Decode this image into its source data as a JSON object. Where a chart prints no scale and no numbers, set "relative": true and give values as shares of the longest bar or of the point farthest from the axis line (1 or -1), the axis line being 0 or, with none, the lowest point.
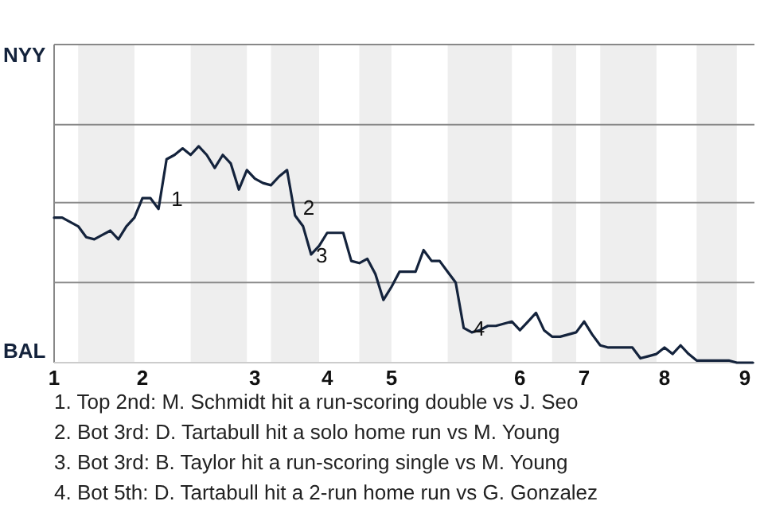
{
  "chart_data": {
    "type": "line",
    "relative": true,
    "categories": [
      "1",
      null,
      null,
      null,
      null,
      null,
      null,
      null,
      null,
      null,
      null,
      "2",
      null,
      null,
      null,
      null,
      null,
      null,
      null,
      null,
      null,
      null,
      null,
      null,
      null,
      "3",
      null,
      null,
      null,
      null,
      null,
      null,
      null,
      null,
      "4",
      null,
      null,
      null,
      null,
      null,
      null,
      null,
      "5",
      null,
      null,
      null,
      null,
      null,
      null,
      null,
      null,
      null,
      null,
      null,
      null,
      null,
      null,
      null,
      "6",
      null,
      null,
      null,
      null,
      null,
      null,
      null,
      "7",
      null,
      null,
      null,
      null,
      null,
      null,
      null,
      null,
      null,
      "8",
      null,
      null,
      null,
      null,
      null,
      null,
      null,
      null,
      null,
      "9",
      null
    ],
    "ref_lines": [
      {
        "axis": "y",
        "value": 0.37,
        "color": "#888888"
      },
      {
        "axis": "y",
        "value": 0.74,
        "color": "#888888"
      },
      {
        "axis": "y",
        "value": 1.1,
        "color": "#888888"
      },
      {
        "axis": "y",
        "value": 1.47,
        "color": "#888888"
      }
    ],
    "series": [
      {
        "color": "#14233c",
        "values": [
          0.67,
          0.67,
          0.65,
          0.63,
          0.58,
          0.57,
          0.59,
          0.61,
          0.57,
          0.63,
          0.67,
          0.76,
          0.76,
          0.71,
          0.94,
          0.96,
          0.99,
          0.96,
          1,
          0.96,
          0.9,
          0.96,
          0.92,
          0.8,
          0.89,
          0.85,
          0.83,
          0.82,
          0.86,
          0.89,
          0.68,
          0.63,
          0.5,
          0.54,
          0.6,
          0.6,
          0.6,
          0.47,
          0.46,
          0.48,
          0.41,
          0.29,
          0.35,
          0.42,
          0.42,
          0.42,
          0.52,
          0.47,
          0.47,
          0.42,
          0.37,
          0.16,
          0.14,
          0.15,
          0.17,
          0.17,
          0.18,
          0.19,
          0.15,
          0.19,
          0.23,
          0.15,
          0.12,
          0.12,
          0.13,
          0.14,
          0.19,
          0.13,
          0.08,
          0.07,
          0.07,
          0.07,
          0.07,
          0.02,
          0.03,
          0.04,
          0.07,
          0.04,
          0.08,
          0.04,
          0.01,
          0.01,
          0.01,
          0.01,
          0.01,
          0,
          0,
          0
        ]
      }
    ],
    "annotations": [
      "NYY",
      "BAL",
      "1",
      "2",
      "3",
      "4",
      "1. Top 2nd: M. Schmidt hit a run-scoring double vs J. Seo",
      "2. Bot 3rd: D. Tartabull hit a solo home run vs M. Young",
      "3. Bot 3rd: B. Taylor hit a run-scoring single vs M. Young",
      "4. Bot 5th: D. Tartabull hit a 2-run home run vs G. Gonzalez"
    ]
  }
}
